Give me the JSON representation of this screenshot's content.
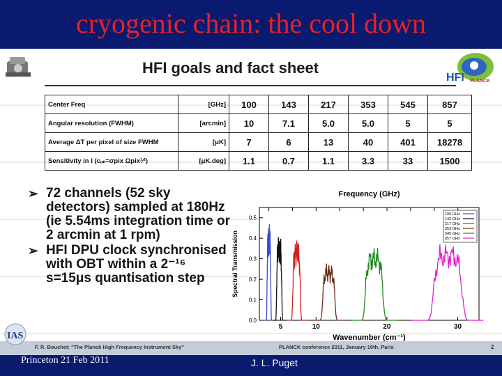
{
  "slide_title": "cryogenic chain: the cool down",
  "inner_title": "HFI goals and fact sheet",
  "table": {
    "rows": [
      {
        "label": "Center Freq",
        "unit": "[GHz]",
        "values": [
          "100",
          "143",
          "217",
          "353",
          "545",
          "857"
        ]
      },
      {
        "label": "Angular resolution (FWHM)",
        "unit": "[arcmin]",
        "values": [
          "10",
          "7.1",
          "5.0",
          "5.0",
          "5",
          "5"
        ]
      },
      {
        "label": "Average ΔT per pixel of size FWHM",
        "unit": "[μK]",
        "values": [
          "7",
          "6",
          "13",
          "40",
          "401",
          "18278"
        ]
      },
      {
        "label": "Sensitivity in I (cᵤₙ=σpix Ωpix¹⁄²)",
        "unit": "[μK.deg]",
        "values": [
          "1.1",
          "0.7",
          "1.1",
          "3.3",
          "33",
          "1500"
        ]
      }
    ]
  },
  "bullets": [
    "72 channels (52 sky detectors) sampled at 180Hz (ie 5.54ms integration time or 2 arcmin at 1 rpm)",
    "HFI DPU clock synchronised with OBT within a 2⁻¹⁶ s=15μs quantisation step"
  ],
  "bullet_arrow": "➢",
  "chart_data": {
    "type": "line",
    "title": "Frequency (GHz)",
    "xlabel": "Wavenumber (cm⁻¹)",
    "ylabel": "Spectral Transmission",
    "xlim": [
      2,
      33
    ],
    "ylim": [
      0,
      0.55
    ],
    "x_ticks": [
      5,
      10,
      20,
      30
    ],
    "y_ticks": [
      0.0,
      0.1,
      0.2,
      0.3,
      0.4,
      0.5
    ],
    "y_tick_labels": [
      "0.0",
      "0.1",
      "0.2",
      "0.3",
      "0.4",
      "0.5"
    ],
    "top_ticks": [
      100,
      200,
      300,
      400,
      500,
      600,
      700,
      800,
      900
    ],
    "legend_position": "top-right",
    "series": [
      {
        "name": "100 GHz",
        "color": "#3a4bd0",
        "center": 3.35,
        "width": 0.55,
        "peak": 0.47
      },
      {
        "name": "143 GHz",
        "color": "#111111",
        "center": 4.8,
        "width": 0.75,
        "peak": 0.42
      },
      {
        "name": "217 GHz",
        "color": "#d22020",
        "center": 7.25,
        "width": 1.1,
        "peak": 0.4
      },
      {
        "name": "353 GHz",
        "color": "#6a2a10",
        "center": 11.8,
        "width": 1.8,
        "peak": 0.28
      },
      {
        "name": "545 GHz",
        "color": "#1f8a1f",
        "center": 18.2,
        "width": 2.6,
        "peak": 0.36
      },
      {
        "name": "857 GHz",
        "color": "#e020d0",
        "center": 28.6,
        "width": 4.2,
        "peak": 0.38
      }
    ]
  },
  "footer": {
    "left": "F. R. Bouchet: \"The Planck High Frequency Instrument Sky\"",
    "middle": "PLANCK conference 2011, January 10th, Paris",
    "page": "2"
  },
  "bottom_left": "Princeton 21 Feb 2011",
  "bottom_middle": "J. L. Puget",
  "colors": {
    "title": "#e4222a",
    "background": "#0a1a6e"
  },
  "icons": [
    "planck-satellite-icon",
    "hfi-planck-logo-icon",
    "ias-logo-icon"
  ]
}
